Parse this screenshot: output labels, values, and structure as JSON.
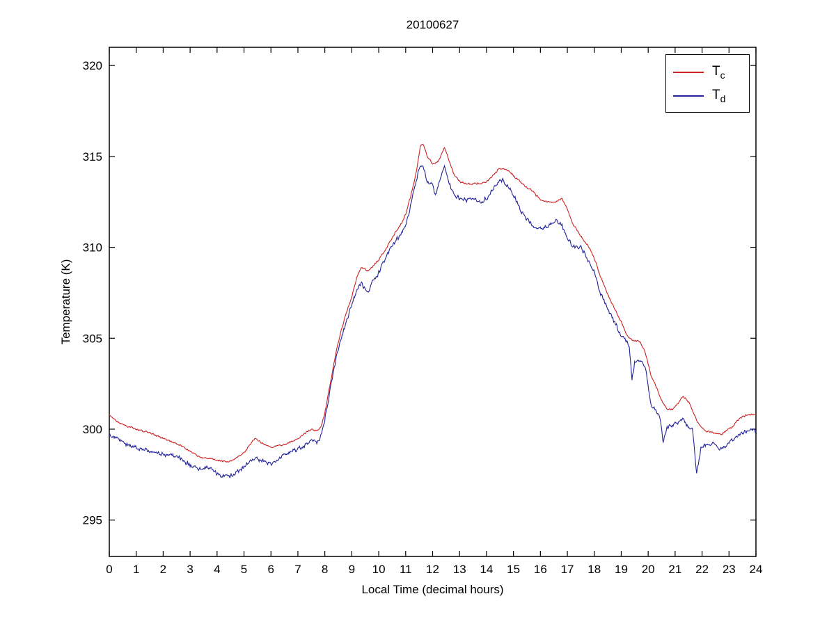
{
  "figure": {
    "title": "20100627"
  },
  "chart_data": {
    "type": "line",
    "title": "20100627",
    "xlabel": "Local Time (decimal hours)",
    "ylabel": "Temperature (K)",
    "xlim": [
      0,
      24
    ],
    "ylim": [
      293,
      321
    ],
    "xticks": [
      0,
      1,
      2,
      3,
      4,
      5,
      6,
      7,
      8,
      9,
      10,
      11,
      12,
      13,
      14,
      15,
      16,
      17,
      18,
      19,
      20,
      21,
      22,
      23,
      24
    ],
    "yticks": [
      295,
      300,
      305,
      310,
      315,
      320
    ],
    "grid": false,
    "legend_position": "top-right",
    "series": [
      {
        "name": "Tc",
        "label": "T",
        "label_sub": "c",
        "color": "#cc2222",
        "noise": 0.06,
        "points": [
          [
            0,
            300.8
          ],
          [
            0.3,
            300.4
          ],
          [
            0.6,
            300.2
          ],
          [
            1,
            300.0
          ],
          [
            1.5,
            299.8
          ],
          [
            2,
            299.5
          ],
          [
            2.5,
            299.2
          ],
          [
            3,
            298.8
          ],
          [
            3.3,
            298.5
          ],
          [
            3.6,
            298.4
          ],
          [
            4,
            298.3
          ],
          [
            4.3,
            298.2
          ],
          [
            4.6,
            298.3
          ],
          [
            5,
            298.7
          ],
          [
            5.2,
            299.1
          ],
          [
            5.4,
            299.5
          ],
          [
            5.6,
            299.3
          ],
          [
            5.8,
            299.1
          ],
          [
            6,
            299.0
          ],
          [
            6.3,
            299.1
          ],
          [
            6.6,
            299.2
          ],
          [
            7,
            299.5
          ],
          [
            7.3,
            299.8
          ],
          [
            7.5,
            300.0
          ],
          [
            7.7,
            299.9
          ],
          [
            7.85,
            300.1
          ],
          [
            8,
            300.9
          ],
          [
            8.2,
            302.5
          ],
          [
            8.4,
            304.1
          ],
          [
            8.6,
            305.4
          ],
          [
            8.8,
            306.4
          ],
          [
            9,
            307.3
          ],
          [
            9.2,
            308.4
          ],
          [
            9.35,
            308.9
          ],
          [
            9.5,
            308.8
          ],
          [
            9.65,
            308.7
          ],
          [
            9.8,
            309.0
          ],
          [
            10,
            309.3
          ],
          [
            10.3,
            310.0
          ],
          [
            10.6,
            310.8
          ],
          [
            10.8,
            311.2
          ],
          [
            11,
            311.8
          ],
          [
            11.2,
            312.9
          ],
          [
            11.4,
            314.2
          ],
          [
            11.55,
            315.6
          ],
          [
            11.65,
            315.7
          ],
          [
            11.8,
            315.0
          ],
          [
            12,
            314.6
          ],
          [
            12.2,
            314.7
          ],
          [
            12.45,
            315.5
          ],
          [
            12.6,
            314.8
          ],
          [
            12.8,
            314.0
          ],
          [
            13,
            313.6
          ],
          [
            13.2,
            313.5
          ],
          [
            13.5,
            313.5
          ],
          [
            13.8,
            313.5
          ],
          [
            14,
            313.6
          ],
          [
            14.2,
            313.9
          ],
          [
            14.45,
            314.3
          ],
          [
            14.7,
            314.3
          ],
          [
            14.9,
            314.1
          ],
          [
            15.1,
            313.8
          ],
          [
            15.4,
            313.4
          ],
          [
            15.7,
            313.1
          ],
          [
            16,
            312.6
          ],
          [
            16.3,
            312.5
          ],
          [
            16.6,
            312.5
          ],
          [
            16.8,
            312.7
          ],
          [
            17,
            312.1
          ],
          [
            17.2,
            311.3
          ],
          [
            17.5,
            310.6
          ],
          [
            17.8,
            310.0
          ],
          [
            18,
            309.4
          ],
          [
            18.2,
            308.5
          ],
          [
            18.5,
            307.4
          ],
          [
            18.8,
            306.5
          ],
          [
            19,
            305.9
          ],
          [
            19.2,
            305.2
          ],
          [
            19.4,
            304.9
          ],
          [
            19.7,
            304.8
          ],
          [
            19.9,
            304.2
          ],
          [
            20.1,
            303.0
          ],
          [
            20.3,
            302.3
          ],
          [
            20.5,
            301.6
          ],
          [
            20.7,
            301.1
          ],
          [
            20.9,
            301.1
          ],
          [
            21.1,
            301.4
          ],
          [
            21.3,
            301.8
          ],
          [
            21.5,
            301.5
          ],
          [
            21.7,
            300.8
          ],
          [
            21.9,
            300.2
          ],
          [
            22.1,
            299.9
          ],
          [
            22.4,
            299.8
          ],
          [
            22.7,
            299.7
          ],
          [
            22.9,
            299.9
          ],
          [
            23.1,
            300.1
          ],
          [
            23.4,
            300.6
          ],
          [
            23.7,
            300.8
          ],
          [
            24,
            300.8
          ]
        ]
      },
      {
        "name": "Td",
        "label": "T",
        "label_sub": "d",
        "color": "#222299",
        "noise": 0.14,
        "points": [
          [
            0,
            299.7
          ],
          [
            0.3,
            299.5
          ],
          [
            0.6,
            299.2
          ],
          [
            1,
            299.0
          ],
          [
            1.5,
            298.8
          ],
          [
            2,
            298.6
          ],
          [
            2.5,
            298.5
          ],
          [
            3,
            298.0
          ],
          [
            3.3,
            297.8
          ],
          [
            3.6,
            297.9
          ],
          [
            3.8,
            297.8
          ],
          [
            4,
            297.5
          ],
          [
            4.3,
            297.4
          ],
          [
            4.6,
            297.5
          ],
          [
            5,
            297.9
          ],
          [
            5.2,
            298.2
          ],
          [
            5.4,
            298.4
          ],
          [
            5.6,
            298.3
          ],
          [
            5.8,
            298.2
          ],
          [
            6,
            298.1
          ],
          [
            6.3,
            298.4
          ],
          [
            6.6,
            298.7
          ],
          [
            7,
            298.9
          ],
          [
            7.3,
            299.1
          ],
          [
            7.5,
            299.4
          ],
          [
            7.7,
            299.3
          ],
          [
            7.85,
            299.6
          ],
          [
            8,
            300.5
          ],
          [
            8.2,
            302.2
          ],
          [
            8.4,
            303.8
          ],
          [
            8.6,
            305.0
          ],
          [
            8.8,
            305.9
          ],
          [
            9,
            306.9
          ],
          [
            9.2,
            307.7
          ],
          [
            9.35,
            308.0
          ],
          [
            9.5,
            307.7
          ],
          [
            9.65,
            307.6
          ],
          [
            9.8,
            308.2
          ],
          [
            10,
            308.6
          ],
          [
            10.3,
            309.6
          ],
          [
            10.6,
            310.3
          ],
          [
            10.8,
            310.7
          ],
          [
            11,
            311.2
          ],
          [
            11.2,
            312.4
          ],
          [
            11.4,
            313.7
          ],
          [
            11.55,
            314.6
          ],
          [
            11.65,
            314.4
          ],
          [
            11.8,
            313.6
          ],
          [
            12,
            313.5
          ],
          [
            12.1,
            312.8
          ],
          [
            12.3,
            313.9
          ],
          [
            12.45,
            314.5
          ],
          [
            12.6,
            313.6
          ],
          [
            12.8,
            312.9
          ],
          [
            13,
            312.7
          ],
          [
            13.2,
            312.6
          ],
          [
            13.5,
            312.7
          ],
          [
            13.8,
            312.5
          ],
          [
            14,
            312.7
          ],
          [
            14.2,
            313.1
          ],
          [
            14.45,
            313.6
          ],
          [
            14.6,
            313.7
          ],
          [
            14.8,
            313.3
          ],
          [
            15,
            312.9
          ],
          [
            15.2,
            312.2
          ],
          [
            15.4,
            311.7
          ],
          [
            15.7,
            311.2
          ],
          [
            16,
            311.0
          ],
          [
            16.3,
            311.2
          ],
          [
            16.6,
            311.5
          ],
          [
            16.8,
            311.2
          ],
          [
            17,
            310.5
          ],
          [
            17.2,
            310.1
          ],
          [
            17.5,
            310.0
          ],
          [
            17.8,
            309.2
          ],
          [
            18,
            308.6
          ],
          [
            18.2,
            307.6
          ],
          [
            18.5,
            306.6
          ],
          [
            18.8,
            305.8
          ],
          [
            19,
            305.1
          ],
          [
            19.2,
            304.8
          ],
          [
            19.3,
            304.6
          ],
          [
            19.4,
            302.7
          ],
          [
            19.5,
            303.7
          ],
          [
            19.7,
            303.8
          ],
          [
            19.9,
            303.4
          ],
          [
            20.1,
            301.4
          ],
          [
            20.3,
            300.9
          ],
          [
            20.45,
            300.6
          ],
          [
            20.55,
            299.3
          ],
          [
            20.7,
            300.1
          ],
          [
            20.9,
            300.2
          ],
          [
            21.1,
            300.4
          ],
          [
            21.3,
            300.6
          ],
          [
            21.5,
            300.1
          ],
          [
            21.65,
            300.0
          ],
          [
            21.8,
            297.5
          ],
          [
            21.95,
            298.9
          ],
          [
            22.1,
            299.1
          ],
          [
            22.4,
            299.2
          ],
          [
            22.7,
            298.9
          ],
          [
            22.9,
            299.1
          ],
          [
            23.1,
            299.4
          ],
          [
            23.4,
            299.7
          ],
          [
            23.7,
            299.9
          ],
          [
            24,
            299.9
          ]
        ]
      }
    ]
  }
}
